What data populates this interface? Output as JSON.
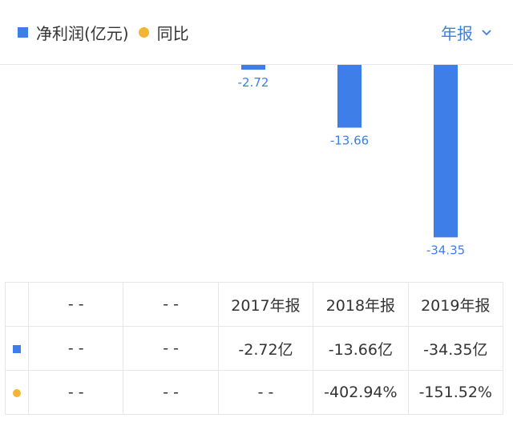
{
  "legend": {
    "series1": "净利润(亿元)",
    "series2": "同比",
    "series1_color": "#3d7ee8",
    "series2_color": "#f2b535"
  },
  "period_selector": {
    "label": "年报",
    "icon": "chevron-down-icon"
  },
  "chart_data": {
    "type": "bar",
    "categories": [
      "",
      "",
      "2017年报",
      "2018年报",
      "2019年报"
    ],
    "series": [
      {
        "name": "净利润(亿元)",
        "values": [
          null,
          null,
          -2.72,
          -13.66,
          -34.35
        ],
        "labels": [
          "",
          "",
          "-2.72",
          "-13.66",
          "-34.35"
        ],
        "color": "#3d7ee8"
      },
      {
        "name": "同比",
        "type": "line",
        "values": [
          null,
          null,
          null,
          -402.94,
          -151.52
        ],
        "color": "#f2b535"
      }
    ]
  },
  "table": {
    "header": [
      "",
      "- -",
      "- -",
      "2017年报",
      "2018年报",
      "2019年报"
    ],
    "rows": [
      {
        "marker": "blue-square",
        "cells": [
          "- -",
          "- -",
          "-2.72亿",
          "-13.66亿",
          "-34.35亿"
        ]
      },
      {
        "marker": "orange-dot",
        "cells": [
          "- -",
          "- -",
          "- -",
          "-402.94%",
          "-151.52%"
        ]
      }
    ]
  }
}
